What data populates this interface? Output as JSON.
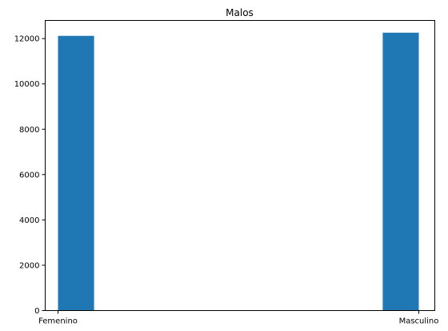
{
  "chart_data": {
    "type": "bar",
    "title": "Malos",
    "xlabel": "",
    "ylabel": "",
    "categories": [
      "Femenino",
      "Masculino"
    ],
    "values": [
      12120,
      12260
    ],
    "ylim": [
      0,
      12800
    ],
    "yticks": [
      0,
      2000,
      4000,
      6000,
      8000,
      10000,
      12000
    ],
    "grid": false,
    "legend": "none",
    "bar_color": "#1f77b4"
  }
}
